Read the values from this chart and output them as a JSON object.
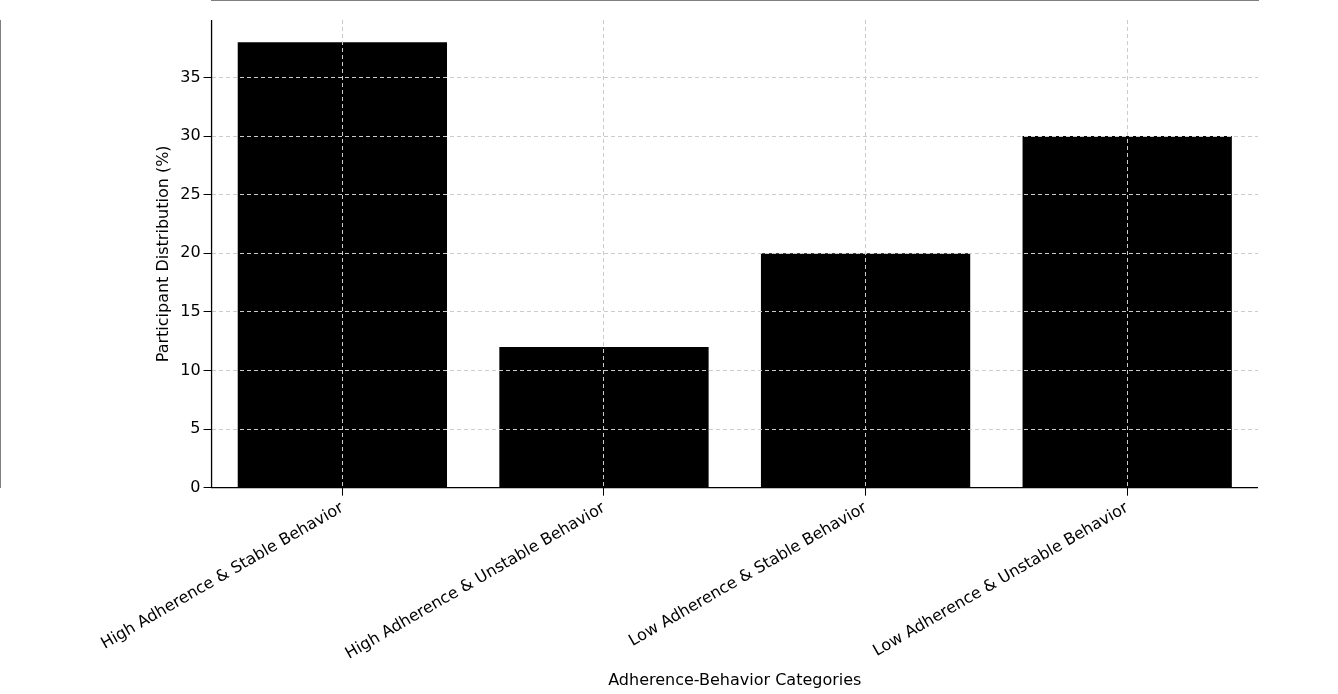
{
  "chart_data": {
    "type": "bar",
    "xlabel": "Adherence-Behavior Categories",
    "ylabel": "Participant Distribution (%)",
    "categories": [
      "High Adherence & Stable Behavior",
      "High Adherence & Unstable Behavior",
      "Low Adherence & Stable Behavior",
      "Low Adherence & Unstable Behavior"
    ],
    "values": [
      38,
      12,
      20,
      30
    ],
    "color": "#000000",
    "ylim": [
      0,
      39.9
    ],
    "yticks": [
      0,
      5,
      10,
      15,
      20,
      25,
      30,
      35
    ],
    "grid": true
  }
}
